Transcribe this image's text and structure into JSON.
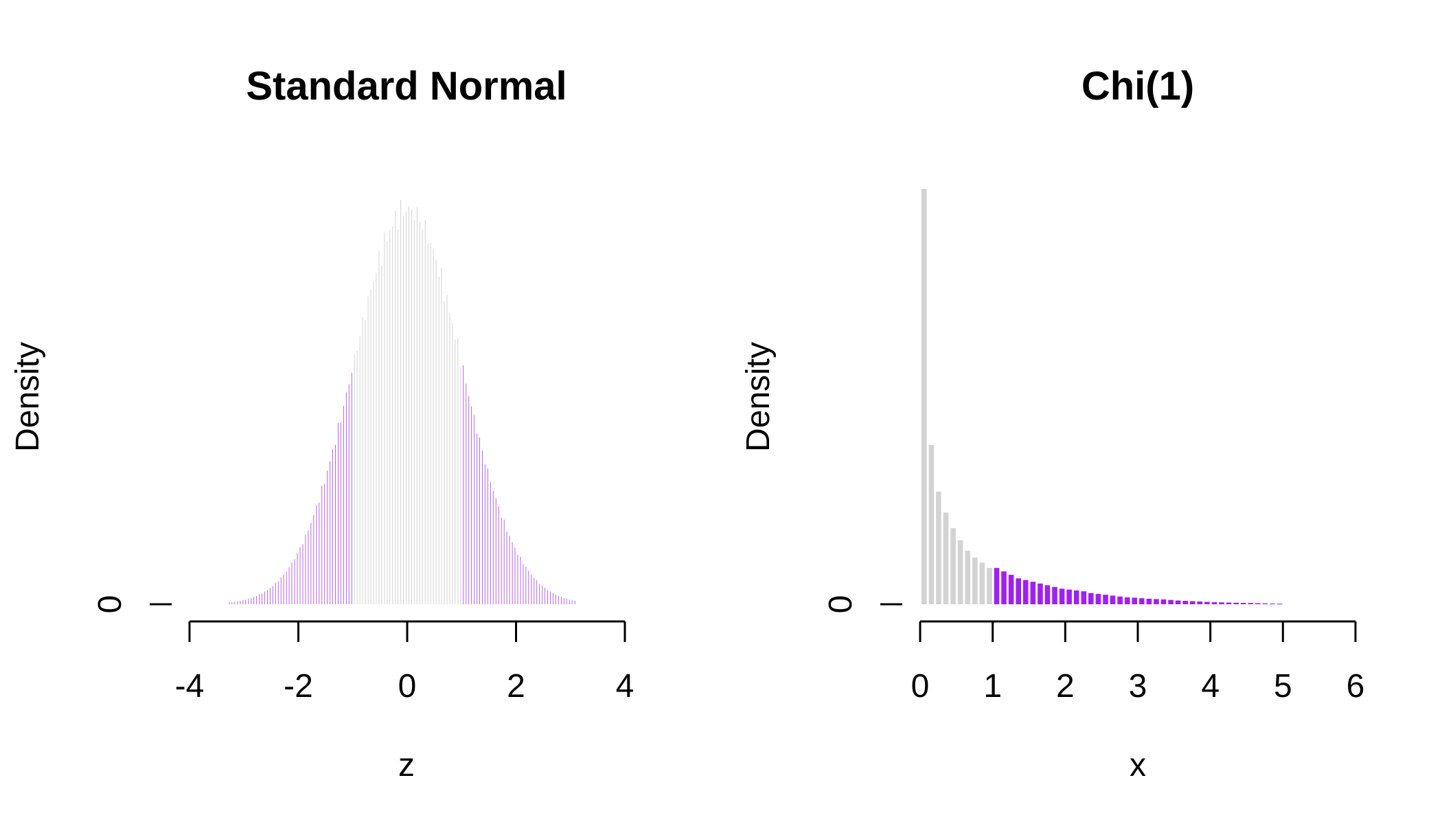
{
  "figure": {
    "colors": {
      "background": "#ffffff",
      "inside": "#d3d3d3",
      "tail_normal": "#b865e8",
      "tail_chi": "#a020f0",
      "axis": "#000000"
    }
  },
  "chart_data": [
    {
      "type": "bar",
      "title": "Standard Normal",
      "xlabel": "z",
      "ylabel": "Density",
      "xlim": [
        -4,
        4
      ],
      "xticks": [
        -4,
        -2,
        0,
        2,
        4
      ],
      "xtick_labels": [
        "-4",
        "-2",
        "0",
        "2",
        "4"
      ],
      "ytick_labels": [
        "0"
      ],
      "ylim": [
        0,
        0.42
      ],
      "bin_width": 0.05,
      "range": [
        -3.3,
        3.1
      ],
      "highlight_rule": "abs(z) > 1",
      "peak_density": 0.4
    },
    {
      "type": "bar",
      "title": "Chi(1)",
      "xlabel": "x",
      "ylabel": "Density",
      "xlim": [
        0,
        6
      ],
      "xticks": [
        0,
        1,
        2,
        3,
        4,
        5,
        6
      ],
      "xtick_labels": [
        "0",
        "1",
        "2",
        "3",
        "4",
        "5",
        "6"
      ],
      "ytick_labels": [
        "0"
      ],
      "bin_width": 0.1,
      "highlight_rule": "x > 1",
      "bins_left": [
        0.0,
        0.1,
        0.2,
        0.3,
        0.4,
        0.5,
        0.6,
        0.7,
        0.8,
        0.9,
        1.0,
        1.1,
        1.2,
        1.3,
        1.4,
        1.5,
        1.6,
        1.7,
        1.8,
        1.9,
        2.0,
        2.1,
        2.2,
        2.3,
        2.4,
        2.5,
        2.6,
        2.7,
        2.8,
        2.9,
        3.0,
        3.1,
        3.2,
        3.3,
        3.4,
        3.5,
        3.6,
        3.7,
        3.8,
        3.9,
        4.0,
        4.1,
        4.2,
        4.3,
        4.4,
        4.5,
        4.6,
        4.7,
        4.8,
        4.9
      ],
      "values": [
        2.4,
        0.92,
        0.65,
        0.53,
        0.44,
        0.37,
        0.31,
        0.27,
        0.24,
        0.21,
        0.21,
        0.19,
        0.17,
        0.15,
        0.14,
        0.13,
        0.12,
        0.11,
        0.1,
        0.09,
        0.085,
        0.08,
        0.075,
        0.065,
        0.06,
        0.055,
        0.05,
        0.045,
        0.04,
        0.038,
        0.035,
        0.032,
        0.03,
        0.028,
        0.025,
        0.022,
        0.02,
        0.018,
        0.016,
        0.014,
        0.012,
        0.011,
        0.01,
        0.009,
        0.008,
        0.007,
        0.006,
        0.005,
        0.004,
        0.003
      ],
      "ylim": [
        0,
        2.4
      ]
    }
  ]
}
